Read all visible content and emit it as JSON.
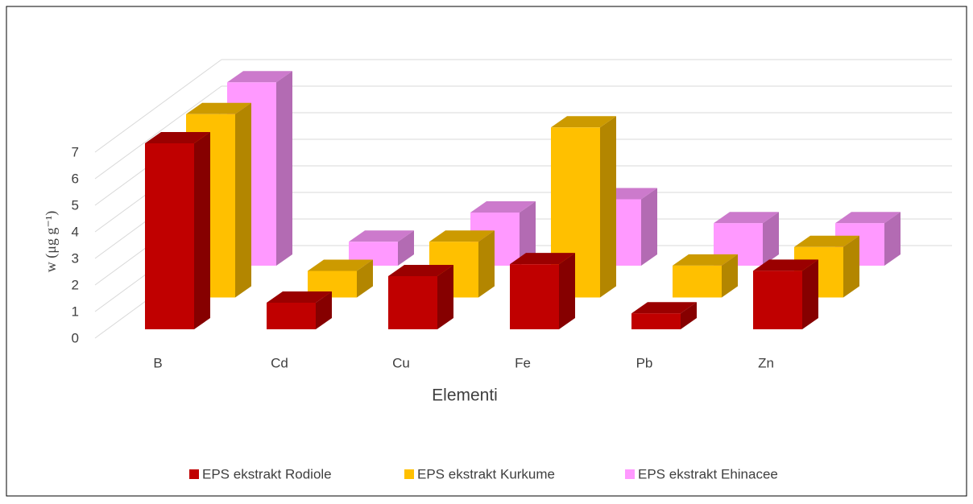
{
  "chart_data": {
    "type": "bar3d",
    "x_label": "Elementi",
    "y_label": "w (μg g⁻¹)",
    "categories": [
      "B",
      "Cd",
      "Cu",
      "Fe",
      "Pb",
      "Zn"
    ],
    "series": [
      {
        "name": "EPS ekstrakt Rodiole",
        "color": "#c00000",
        "values": [
          7.0,
          1.0,
          2.0,
          2.45,
          0.6,
          2.2
        ]
      },
      {
        "name": "EPS ekstrakt Kurkume",
        "color": "#ffc000",
        "values": [
          6.9,
          1.0,
          2.1,
          6.4,
          1.2,
          1.9
        ]
      },
      {
        "name": "EPS ekstrakt Ehinacee",
        "color": "#ff99ff",
        "values": [
          6.9,
          0.9,
          2.0,
          2.5,
          1.6,
          1.6
        ]
      }
    ],
    "ylim": [
      0,
      7
    ],
    "yticks": [
      0,
      1,
      2,
      3,
      4,
      5,
      6,
      7
    ],
    "grid": true,
    "legend": "bottom"
  }
}
